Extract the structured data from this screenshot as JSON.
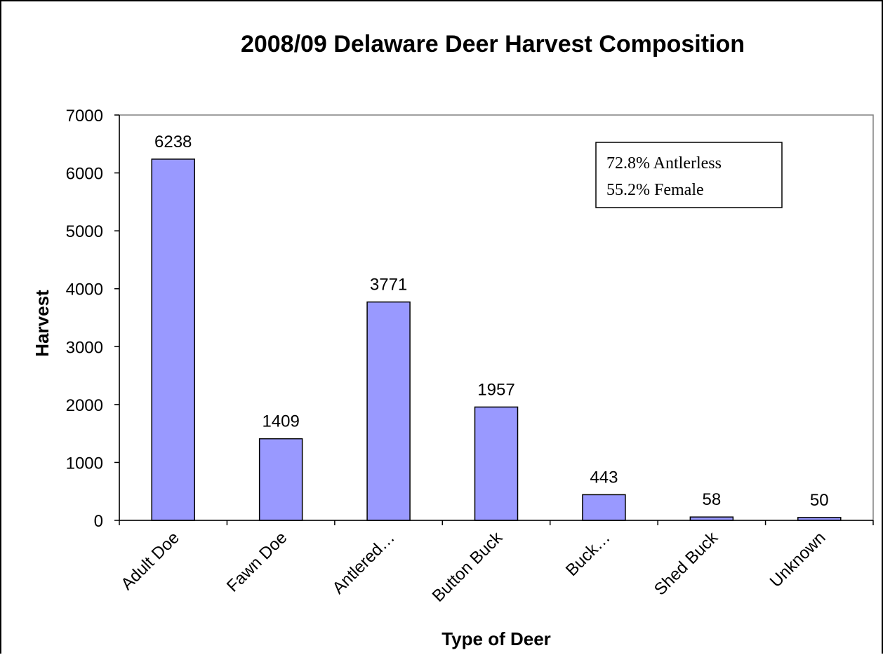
{
  "chart_data": {
    "type": "bar",
    "title": "2008/09 Delaware Deer Harvest Composition",
    "xlabel": "Type of Deer",
    "ylabel": "Harvest",
    "categories": [
      "Adult Doe",
      "Fawn Doe",
      "Antlered…",
      "Button Buck",
      "Buck…",
      "Shed Buck",
      "Unknown"
    ],
    "values": [
      6238,
      1409,
      3771,
      1957,
      443,
      58,
      50
    ],
    "data_labels": [
      "6238",
      "1409",
      "3771",
      "1957",
      "443",
      "58",
      "50"
    ],
    "ylim": [
      0,
      7000
    ],
    "yticks": [
      0,
      1000,
      2000,
      3000,
      4000,
      5000,
      6000,
      7000
    ],
    "grid": false,
    "bar_color": "#9999ff",
    "bar_edge_color": "#000000",
    "annotation": {
      "lines": [
        "72.8% Antlerless",
        "55.2% Female"
      ],
      "position": "top-right"
    }
  }
}
